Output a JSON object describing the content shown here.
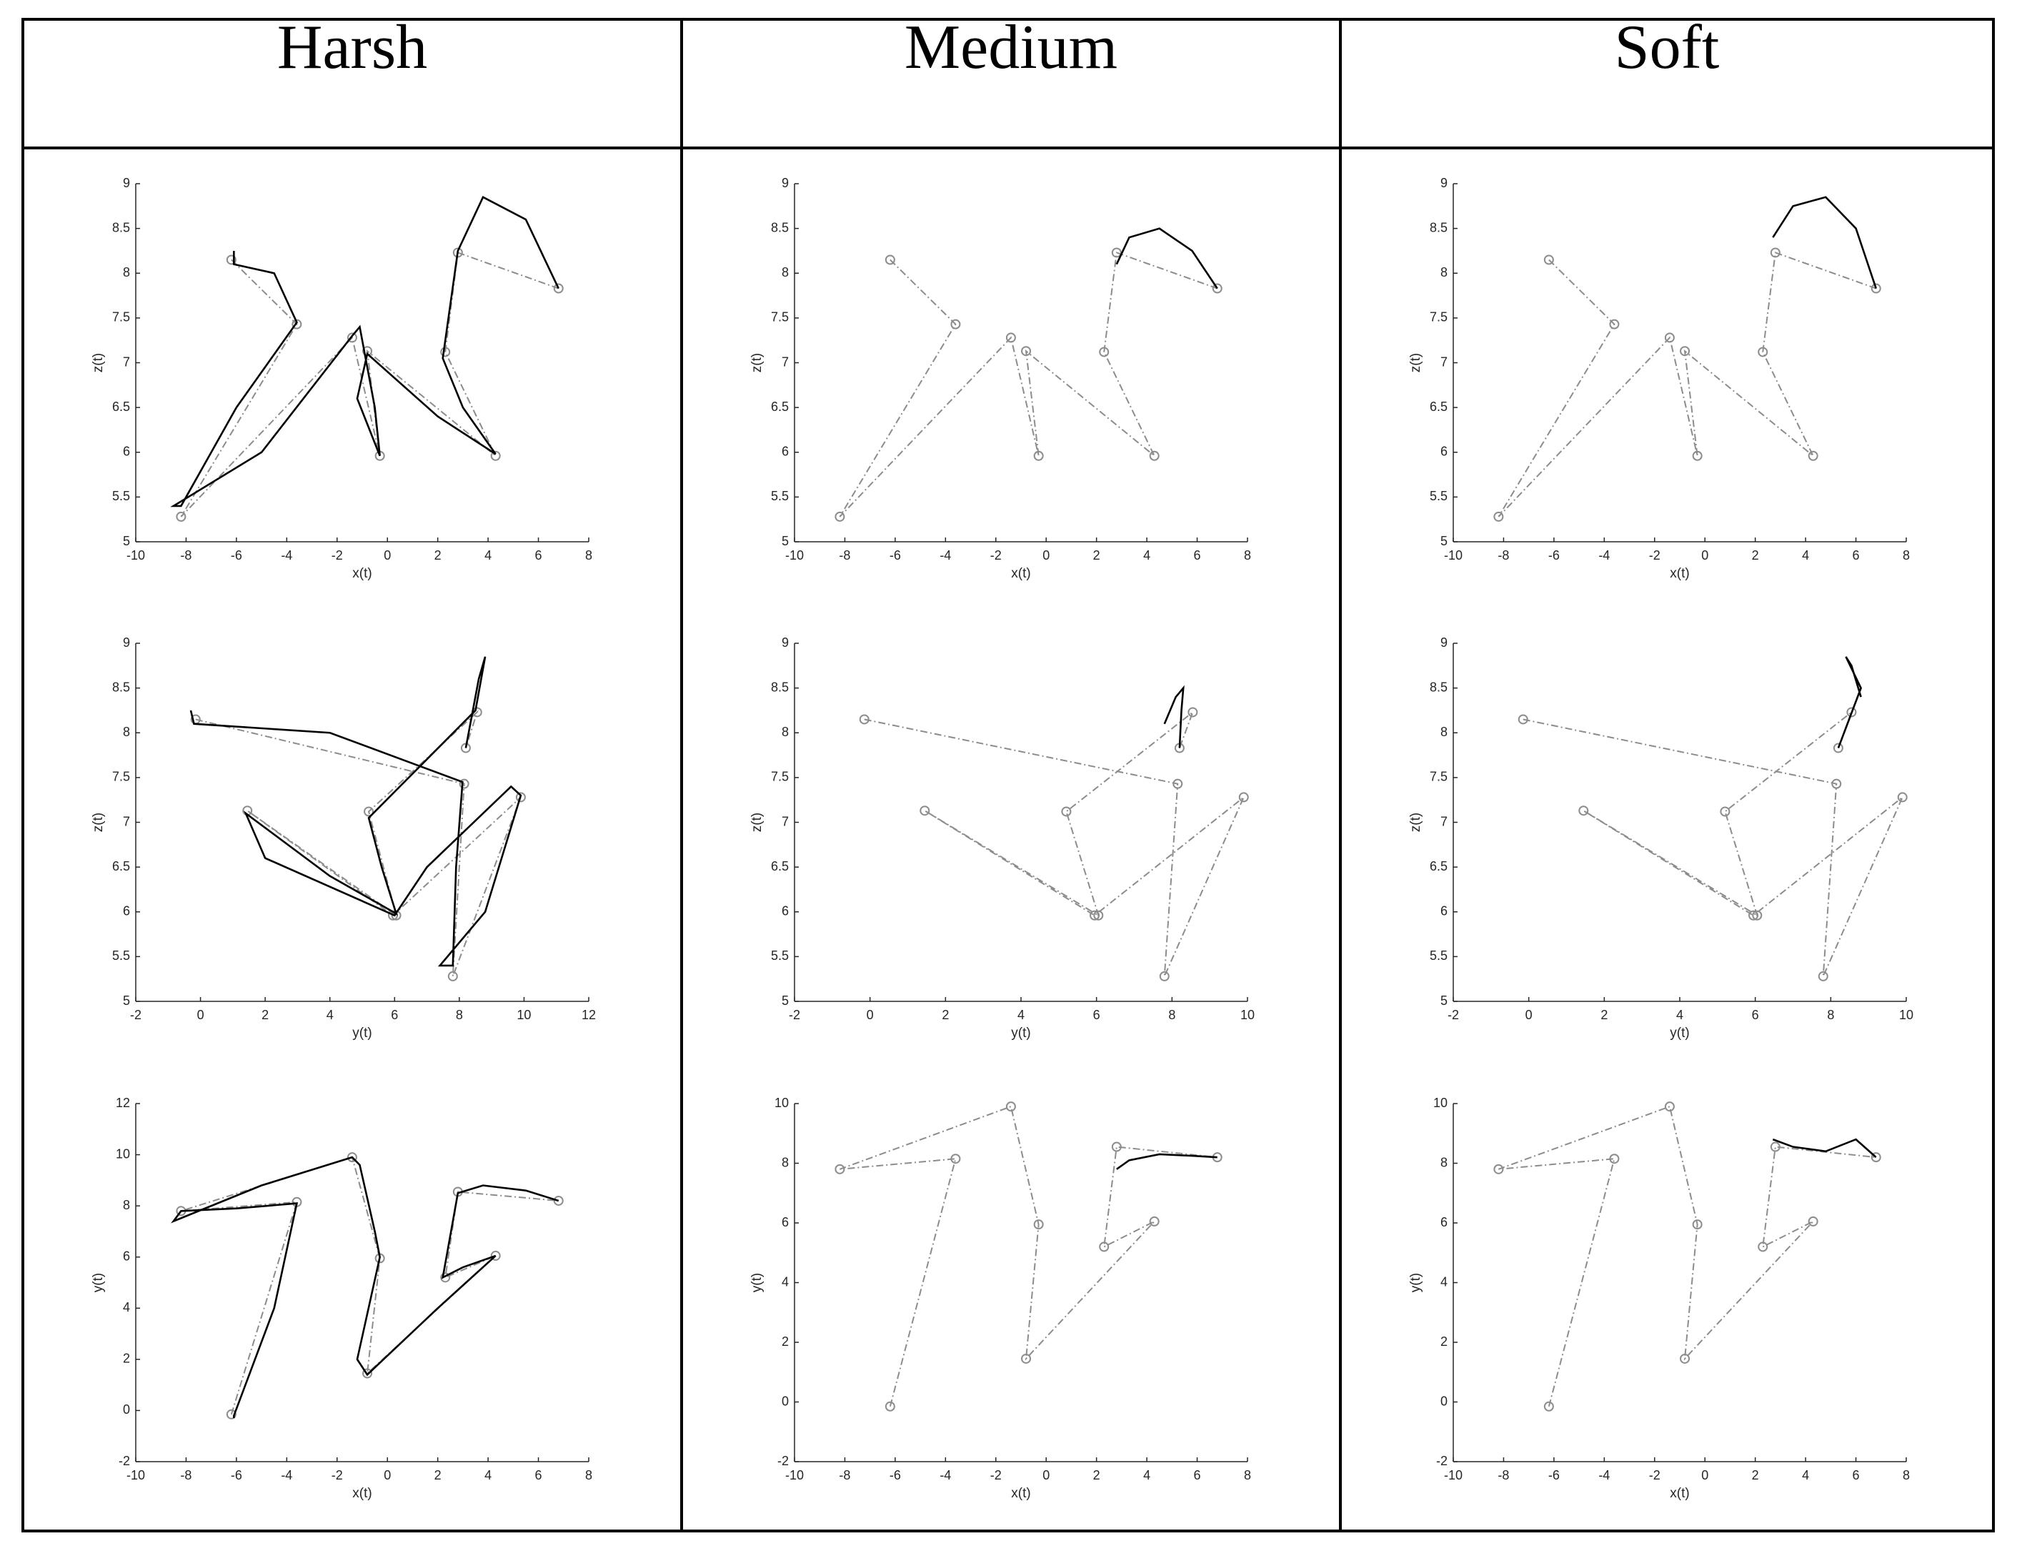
{
  "table": {
    "headers": [
      "Harsh",
      "Medium",
      "Soft"
    ]
  },
  "chart_data": [
    {
      "type": "line",
      "xlabel": "x(t)",
      "ylabel": "z(t)",
      "xlim": [
        -10,
        8
      ],
      "xticks": [
        -10,
        -8,
        -6,
        -4,
        -2,
        0,
        2,
        4,
        6,
        8
      ],
      "ylim": [
        5,
        9
      ],
      "yticks": [
        5,
        5.5,
        6,
        6.5,
        7,
        7.5,
        8,
        8.5,
        9
      ],
      "series": [
        {
          "color": "#8c8c8c",
          "style": "dashdot",
          "marker": "circle",
          "x": [
            -6.2,
            -3.6,
            -8.2,
            -1.4,
            -0.3,
            -0.8,
            4.3,
            2.3,
            2.8,
            6.8
          ],
          "values": [
            8.15,
            7.43,
            5.28,
            7.28,
            5.96,
            7.13,
            5.96,
            7.12,
            8.23,
            7.83
          ]
        },
        {
          "color": "#000000",
          "style": "solid",
          "x": [
            -6.1,
            -6.1,
            -4.5,
            -3.6,
            -6,
            -8.2,
            -8.5,
            -5,
            -1.4,
            -1.1,
            -0.5,
            -0.3,
            -1.2,
            -0.8,
            2,
            4.3,
            3,
            2.2,
            2.8,
            3.8,
            5.5,
            6.8
          ],
          "values": [
            8.25,
            8.1,
            8.0,
            7.45,
            6.5,
            5.4,
            5.4,
            6.0,
            7.3,
            7.4,
            6.5,
            5.96,
            6.6,
            7.1,
            6.4,
            5.98,
            6.5,
            7.05,
            8.25,
            8.85,
            8.6,
            7.83
          ]
        }
      ]
    },
    {
      "type": "line",
      "xlabel": "x(t)",
      "ylabel": "z(t)",
      "xlim": [
        -10,
        8
      ],
      "xticks": [
        -10,
        -8,
        -6,
        -4,
        -2,
        0,
        2,
        4,
        6,
        8
      ],
      "ylim": [
        5,
        9
      ],
      "yticks": [
        5,
        5.5,
        6,
        6.5,
        7,
        7.5,
        8,
        8.5,
        9
      ],
      "series": [
        {
          "color": "#8c8c8c",
          "style": "dashdot",
          "marker": "circle",
          "x": [
            -6.2,
            -3.6,
            -8.2,
            -1.4,
            -0.3,
            -0.8,
            4.3,
            2.3,
            2.8,
            6.8
          ],
          "values": [
            8.15,
            7.43,
            5.28,
            7.28,
            5.96,
            7.13,
            5.96,
            7.12,
            8.23,
            7.83
          ]
        },
        {
          "color": "#000000",
          "style": "solid",
          "x": [
            2.8,
            3.3,
            4.5,
            5.8,
            6.8
          ],
          "values": [
            8.1,
            8.4,
            8.5,
            8.25,
            7.83
          ]
        }
      ]
    },
    {
      "type": "line",
      "xlabel": "x(t)",
      "ylabel": "z(t)",
      "xlim": [
        -10,
        8
      ],
      "xticks": [
        -10,
        -8,
        -6,
        -4,
        -2,
        0,
        2,
        4,
        6,
        8
      ],
      "ylim": [
        5,
        9
      ],
      "yticks": [
        5,
        5.5,
        6,
        6.5,
        7,
        7.5,
        8,
        8.5,
        9
      ],
      "series": [
        {
          "color": "#8c8c8c",
          "style": "dashdot",
          "marker": "circle",
          "x": [
            -6.2,
            -3.6,
            -8.2,
            -1.4,
            -0.3,
            -0.8,
            4.3,
            2.3,
            2.8,
            6.8
          ],
          "values": [
            8.15,
            7.43,
            5.28,
            7.28,
            5.96,
            7.13,
            5.96,
            7.12,
            8.23,
            7.83
          ]
        },
        {
          "color": "#000000",
          "style": "solid",
          "x": [
            2.7,
            3.5,
            4.8,
            6,
            6.8
          ],
          "values": [
            8.4,
            8.75,
            8.85,
            8.5,
            7.83
          ]
        }
      ]
    },
    {
      "type": "line",
      "xlabel": "y(t)",
      "ylabel": "z(t)",
      "xlim": [
        -2,
        12
      ],
      "xticks": [
        -2,
        0,
        2,
        4,
        6,
        8,
        10,
        12
      ],
      "ylim": [
        5,
        9
      ],
      "yticks": [
        5,
        5.5,
        6,
        6.5,
        7,
        7.5,
        8,
        8.5,
        9
      ],
      "series": [
        {
          "color": "#8c8c8c",
          "style": "dashdot",
          "marker": "circle",
          "x": [
            -0.15,
            8.15,
            7.8,
            9.9,
            5.95,
            1.45,
            6.05,
            5.2,
            8.55,
            8.2
          ],
          "values": [
            8.15,
            7.43,
            5.28,
            7.28,
            5.96,
            7.13,
            5.96,
            7.12,
            8.23,
            7.83
          ]
        },
        {
          "color": "#000000",
          "style": "solid",
          "x": [
            -0.3,
            -0.2,
            4,
            8.1,
            7.9,
            7.8,
            7.4,
            8.8,
            9.9,
            9.6,
            7,
            6.0,
            2,
            1.4,
            4,
            6.05,
            5.6,
            5.2,
            8.5,
            8.8,
            8.6,
            8.2
          ],
          "values": [
            8.25,
            8.1,
            8.0,
            7.45,
            6.5,
            5.4,
            5.4,
            6.0,
            7.3,
            7.4,
            6.5,
            5.96,
            6.6,
            7.1,
            6.4,
            5.98,
            6.5,
            7.05,
            8.25,
            8.85,
            8.6,
            7.83
          ]
        }
      ]
    },
    {
      "type": "line",
      "xlabel": "y(t)",
      "ylabel": "z(t)",
      "xlim": [
        -2,
        10
      ],
      "xticks": [
        -2,
        0,
        2,
        4,
        6,
        8,
        10
      ],
      "ylim": [
        5,
        9
      ],
      "yticks": [
        5,
        5.5,
        6,
        6.5,
        7,
        7.5,
        8,
        8.5,
        9
      ],
      "series": [
        {
          "color": "#8c8c8c",
          "style": "dashdot",
          "marker": "circle",
          "x": [
            -0.15,
            8.15,
            7.8,
            9.9,
            5.95,
            1.45,
            6.05,
            5.2,
            8.55,
            8.2
          ],
          "values": [
            8.15,
            7.43,
            5.28,
            7.28,
            5.96,
            7.13,
            5.96,
            7.12,
            8.23,
            7.83
          ]
        },
        {
          "color": "#000000",
          "style": "solid",
          "x": [
            7.8,
            8.1,
            8.3,
            8.25,
            8.2
          ],
          "values": [
            8.1,
            8.4,
            8.5,
            8.25,
            7.83
          ]
        }
      ]
    },
    {
      "type": "line",
      "xlabel": "y(t)",
      "ylabel": "z(t)",
      "xlim": [
        -2,
        10
      ],
      "xticks": [
        -2,
        0,
        2,
        4,
        6,
        8,
        10
      ],
      "ylim": [
        5,
        9
      ],
      "yticks": [
        5,
        5.5,
        6,
        6.5,
        7,
        7.5,
        8,
        8.5,
        9
      ],
      "series": [
        {
          "color": "#8c8c8c",
          "style": "dashdot",
          "marker": "circle",
          "x": [
            -0.15,
            8.15,
            7.8,
            9.9,
            5.95,
            1.45,
            6.05,
            5.2,
            8.55,
            8.2
          ],
          "values": [
            8.15,
            7.43,
            5.28,
            7.28,
            5.96,
            7.13,
            5.96,
            7.12,
            8.23,
            7.83
          ]
        },
        {
          "color": "#000000",
          "style": "solid",
          "x": [
            8.8,
            8.55,
            8.4,
            8.8,
            8.2
          ],
          "values": [
            8.4,
            8.75,
            8.85,
            8.5,
            7.83
          ]
        }
      ]
    },
    {
      "type": "line",
      "xlabel": "x(t)",
      "ylabel": "y(t)",
      "xlim": [
        -10,
        8
      ],
      "xticks": [
        -10,
        -8,
        -6,
        -4,
        -2,
        0,
        2,
        4,
        6,
        8
      ],
      "ylim": [
        -2,
        12
      ],
      "yticks": [
        -2,
        0,
        2,
        4,
        6,
        8,
        10,
        12
      ],
      "series": [
        {
          "color": "#8c8c8c",
          "style": "dashdot",
          "marker": "circle",
          "x": [
            -6.2,
            -3.6,
            -8.2,
            -1.4,
            -0.3,
            -0.8,
            4.3,
            2.3,
            2.8,
            6.8
          ],
          "values": [
            -0.15,
            8.15,
            7.8,
            9.9,
            5.95,
            1.45,
            6.05,
            5.2,
            8.55,
            8.2
          ]
        },
        {
          "color": "#000000",
          "style": "solid",
          "x": [
            -6.1,
            -6.1,
            -4.5,
            -3.6,
            -6,
            -8.2,
            -8.5,
            -5,
            -1.4,
            -1.1,
            -0.5,
            -0.3,
            -1.2,
            -0.8,
            2,
            4.3,
            3,
            2.2,
            2.8,
            3.8,
            5.5,
            6.8
          ],
          "values": [
            -0.3,
            -0.2,
            4,
            8.1,
            7.9,
            7.8,
            7.4,
            8.8,
            9.9,
            9.6,
            7,
            6.0,
            2,
            1.4,
            4,
            6.05,
            5.6,
            5.2,
            8.5,
            8.8,
            8.6,
            8.2
          ]
        }
      ]
    },
    {
      "type": "line",
      "xlabel": "x(t)",
      "ylabel": "y(t)",
      "xlim": [
        -10,
        8
      ],
      "xticks": [
        -10,
        -8,
        -6,
        -4,
        -2,
        0,
        2,
        4,
        6,
        8
      ],
      "ylim": [
        -2,
        10
      ],
      "yticks": [
        -2,
        0,
        2,
        4,
        6,
        8,
        10
      ],
      "series": [
        {
          "color": "#8c8c8c",
          "style": "dashdot",
          "marker": "circle",
          "x": [
            -6.2,
            -3.6,
            -8.2,
            -1.4,
            -0.3,
            -0.8,
            4.3,
            2.3,
            2.8,
            6.8
          ],
          "values": [
            -0.15,
            8.15,
            7.8,
            9.9,
            5.95,
            1.45,
            6.05,
            5.2,
            8.55,
            8.2
          ]
        },
        {
          "color": "#000000",
          "style": "solid",
          "x": [
            2.8,
            3.3,
            4.5,
            5.8,
            6.8
          ],
          "values": [
            7.8,
            8.1,
            8.3,
            8.25,
            8.2
          ]
        }
      ]
    },
    {
      "type": "line",
      "xlabel": "x(t)",
      "ylabel": "y(t)",
      "xlim": [
        -10,
        8
      ],
      "xticks": [
        -10,
        -8,
        -6,
        -4,
        -2,
        0,
        2,
        4,
        6,
        8
      ],
      "ylim": [
        -2,
        10
      ],
      "yticks": [
        -2,
        0,
        2,
        4,
        6,
        8,
        10
      ],
      "series": [
        {
          "color": "#8c8c8c",
          "style": "dashdot",
          "marker": "circle",
          "x": [
            -6.2,
            -3.6,
            -8.2,
            -1.4,
            -0.3,
            -0.8,
            4.3,
            2.3,
            2.8,
            6.8
          ],
          "values": [
            -0.15,
            8.15,
            7.8,
            9.9,
            5.95,
            1.45,
            6.05,
            5.2,
            8.55,
            8.2
          ]
        },
        {
          "color": "#000000",
          "style": "solid",
          "x": [
            2.7,
            3.5,
            4.8,
            6,
            6.8
          ],
          "values": [
            8.8,
            8.55,
            8.4,
            8.8,
            8.2
          ]
        }
      ]
    }
  ]
}
